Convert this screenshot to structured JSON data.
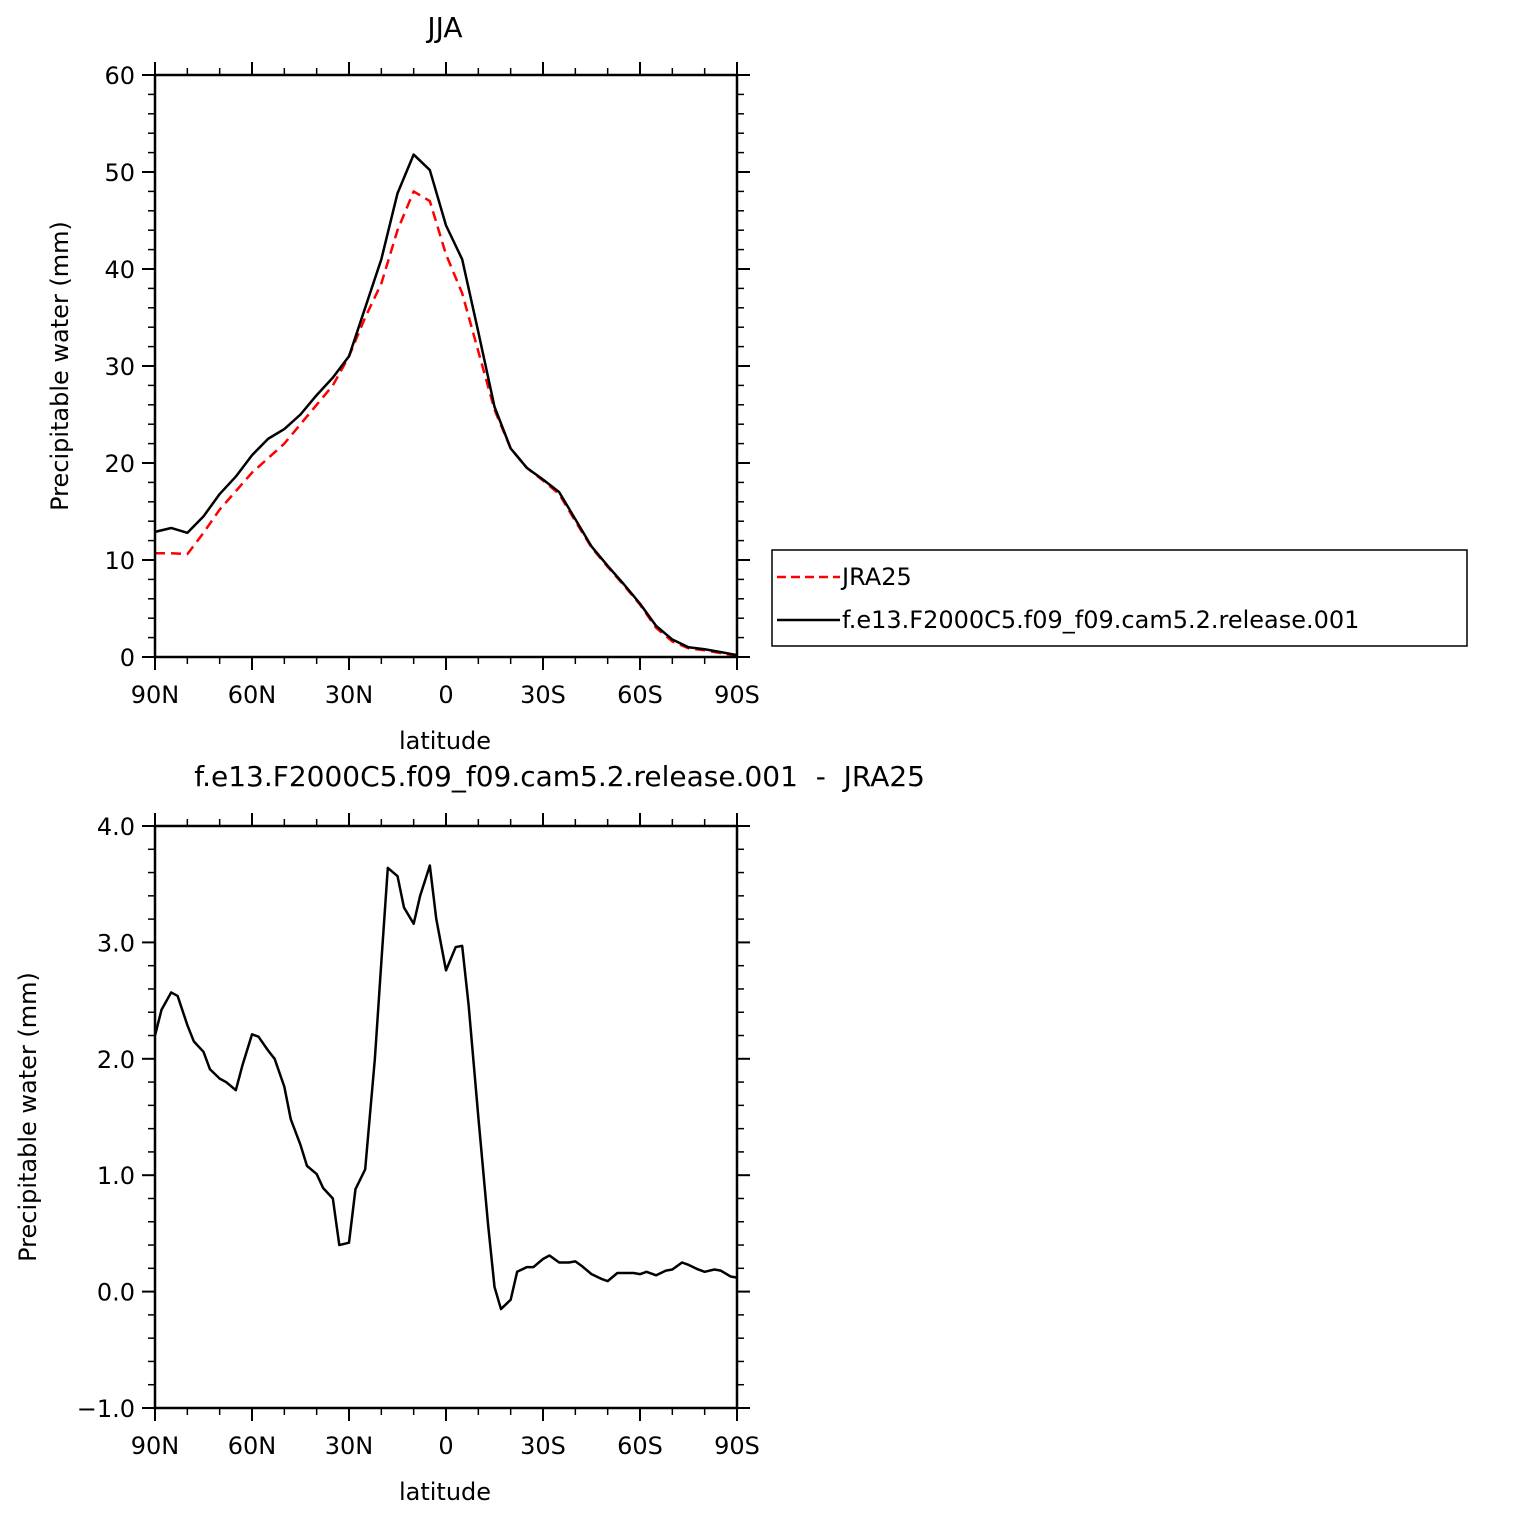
{
  "chart_data": [
    {
      "type": "line",
      "title": "JJA",
      "xlabel": "latitude",
      "ylabel": "Precipitable water (mm)",
      "xlim": [
        90,
        -90
      ],
      "ylim": [
        0,
        60
      ],
      "x_ticks": [
        90,
        60,
        30,
        0,
        -30,
        -60,
        -90
      ],
      "x_tick_labels": [
        "90N",
        "60N",
        "30N",
        "0",
        "30S",
        "60S",
        "90S"
      ],
      "y_ticks": [
        0,
        10,
        20,
        30,
        40,
        50,
        60
      ],
      "y_tick_labels": [
        "0",
        "10",
        "20",
        "30",
        "40",
        "50",
        "60"
      ],
      "legend_position": "right",
      "series": [
        {
          "name": "JRA25",
          "color": "#ff0000",
          "dash": "dashed",
          "x": [
            90,
            85,
            80,
            75,
            70,
            65,
            60,
            55,
            50,
            45,
            40,
            35,
            30,
            25,
            20,
            15,
            10,
            5,
            0,
            -5,
            -10,
            -15,
            -20,
            -25,
            -30,
            -35,
            -40,
            -45,
            -50,
            -55,
            -60,
            -65,
            -70,
            -75,
            -80,
            -85,
            -90
          ],
          "y": [
            10.7,
            10.7,
            10.6,
            12.8,
            15.2,
            17.1,
            19.0,
            20.5,
            22.0,
            24.0,
            26.0,
            28.0,
            31.0,
            35.0,
            38.5,
            44.0,
            48.0,
            47.0,
            41.5,
            37.5,
            31.5,
            25.5,
            21.5,
            19.5,
            18.2,
            16.8,
            14.0,
            11.3,
            9.3,
            7.4,
            5.4,
            3.0,
            1.6,
            0.9,
            0.7,
            0.4,
            0.1
          ]
        },
        {
          "name": "f.e13.F2000C5.f09_f09.cam5.2.release.001",
          "color": "#000000",
          "dash": "solid",
          "x": [
            90,
            85,
            80,
            75,
            70,
            65,
            60,
            55,
            50,
            45,
            40,
            35,
            30,
            25,
            20,
            15,
            10,
            5,
            0,
            -5,
            -10,
            -15,
            -20,
            -25,
            -30,
            -35,
            -40,
            -45,
            -50,
            -55,
            -60,
            -65,
            -70,
            -75,
            -80,
            -85,
            -90
          ],
          "y": [
            12.9,
            13.3,
            12.8,
            14.5,
            16.8,
            18.6,
            20.8,
            22.5,
            23.5,
            25.0,
            27.0,
            28.8,
            31.0,
            36.0,
            41.0,
            47.8,
            51.8,
            50.2,
            44.5,
            41.0,
            33.5,
            25.8,
            21.5,
            19.5,
            18.3,
            17.0,
            14.2,
            11.4,
            9.4,
            7.5,
            5.5,
            3.2,
            1.8,
            1.0,
            0.8,
            0.5,
            0.2
          ]
        }
      ]
    },
    {
      "type": "line",
      "title": "f.e13.F2000C5.f09_f09.cam5.2.release.001  -  JRA25",
      "xlabel": "latitude",
      "ylabel": "Precipitable water (mm)",
      "xlim": [
        90,
        -90
      ],
      "ylim": [
        -1.0,
        4.0
      ],
      "x_ticks": [
        90,
        60,
        30,
        0,
        -30,
        -60,
        -90
      ],
      "x_tick_labels": [
        "90N",
        "60N",
        "30N",
        "0",
        "30S",
        "60S",
        "90S"
      ],
      "y_ticks": [
        -1.0,
        0.0,
        1.0,
        2.0,
        3.0,
        4.0
      ],
      "y_tick_labels": [
        "−1.0",
        "0.0",
        "1.0",
        "2.0",
        "3.0",
        "4.0"
      ],
      "series": [
        {
          "color": "#000000",
          "dash": "solid",
          "x": [
            90,
            88,
            85,
            83,
            80,
            78,
            75,
            73,
            70,
            68,
            65,
            63,
            60,
            58,
            55,
            53,
            50,
            48,
            45,
            43,
            40,
            38,
            35,
            33,
            30,
            28,
            25,
            22,
            20,
            18,
            15,
            13,
            10,
            8,
            5,
            3,
            0,
            -3,
            -5,
            -7,
            -10,
            -13,
            -15,
            -17,
            -20,
            -22,
            -25,
            -27,
            -30,
            -32,
            -35,
            -38,
            -40,
            -42,
            -45,
            -48,
            -50,
            -53,
            -55,
            -58,
            -60,
            -62,
            -65,
            -68,
            -70,
            -73,
            -75,
            -78,
            -80,
            -83,
            -85,
            -88,
            -90
          ],
          "y": [
            2.2,
            2.42,
            2.57,
            2.54,
            2.29,
            2.15,
            2.06,
            1.91,
            1.83,
            1.8,
            1.73,
            1.94,
            2.21,
            2.19,
            2.07,
            2.0,
            1.76,
            1.48,
            1.26,
            1.08,
            1.01,
            0.89,
            0.8,
            0.4,
            0.42,
            0.88,
            1.05,
            2.0,
            2.83,
            3.64,
            3.57,
            3.3,
            3.16,
            3.4,
            3.66,
            3.2,
            2.76,
            2.96,
            2.97,
            2.46,
            1.5,
            0.58,
            0.04,
            -0.15,
            -0.07,
            0.17,
            0.21,
            0.21,
            0.28,
            0.31,
            0.25,
            0.25,
            0.26,
            0.22,
            0.15,
            0.11,
            0.09,
            0.16,
            0.16,
            0.16,
            0.15,
            0.17,
            0.14,
            0.18,
            0.19,
            0.25,
            0.23,
            0.19,
            0.17,
            0.19,
            0.18,
            0.13,
            0.12
          ]
        }
      ]
    }
  ]
}
